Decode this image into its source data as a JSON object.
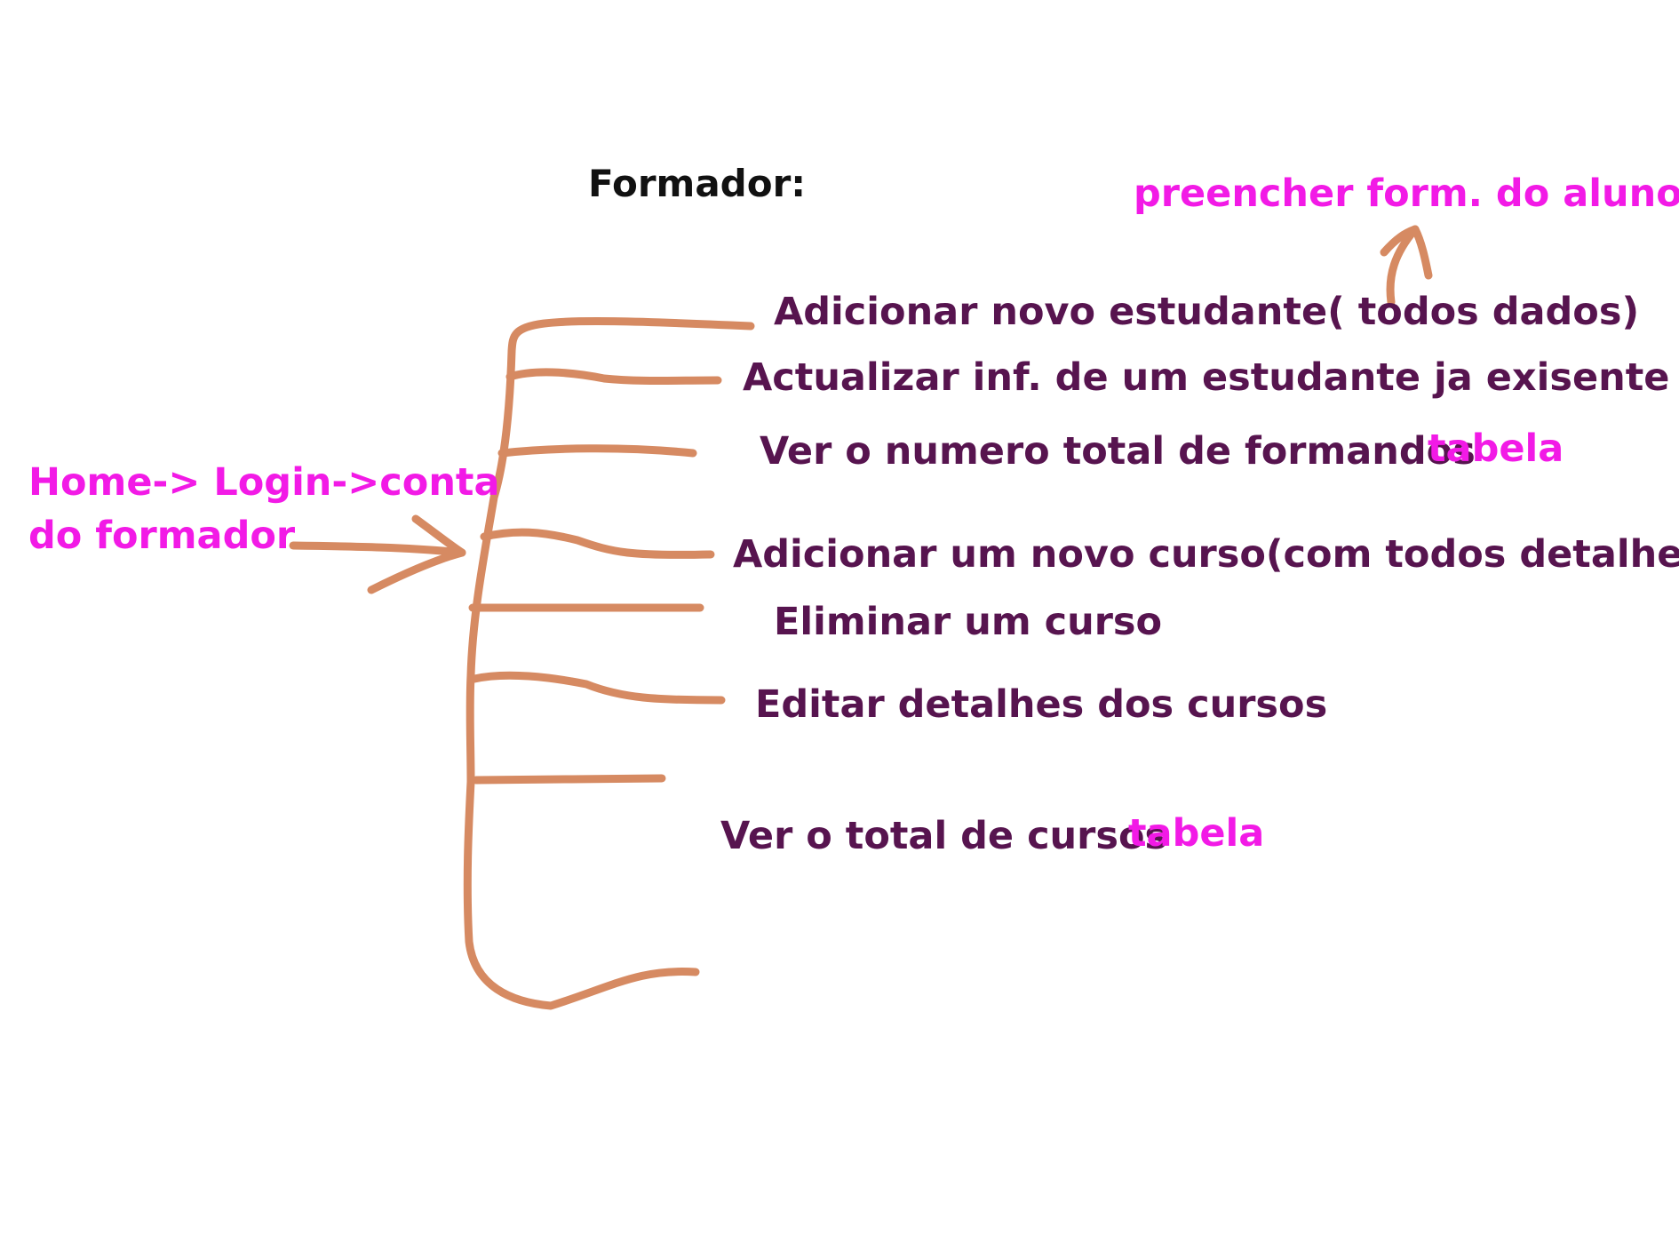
{
  "title": "Formador:",
  "entry_point": {
    "line1": "Home-> Login->conta",
    "line2": "do formador"
  },
  "menu_items": [
    {
      "label": "Adicionar novo estudante( todos dados)"
    },
    {
      "label": "Actualizar inf. de um estudante ja exisente"
    },
    {
      "label": "Ver o numero total de formandos",
      "note": "tabela"
    },
    {
      "label": "Adicionar um novo curso(com todos detalhes)"
    },
    {
      "label": "Eliminar um curso"
    },
    {
      "label": "Editar detalhes dos cursos"
    },
    {
      "label": "Ver o total de cursos",
      "note": "tabela"
    }
  ],
  "callout": "preencher form. do aluno",
  "colors": {
    "stroke": "#d68a62",
    "item_text": "#57144f",
    "annotation": "#f21ae6",
    "heading": "#111111"
  }
}
